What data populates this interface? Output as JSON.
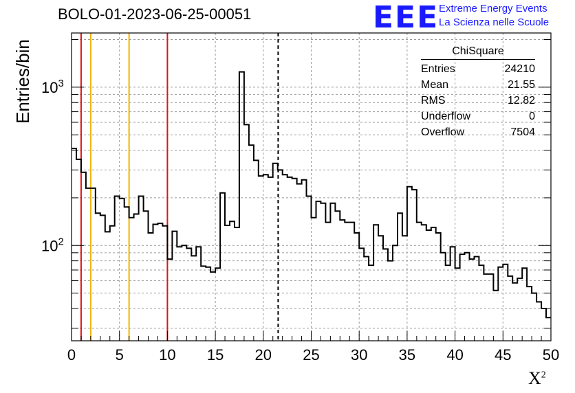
{
  "title": "BOLO-01-2023-06-25-00051",
  "logo": {
    "mark": "EEE",
    "line1": "Extreme Energy Events",
    "line2": "La Scienza nelle Scuole",
    "color": "#1a1aff"
  },
  "axes": {
    "ylabel": "Entries/bin",
    "xlabel": "X",
    "xlabel_sup": "2"
  },
  "stats": {
    "title": "ChiSquare",
    "rows": [
      {
        "label": "Entries",
        "value": "24210"
      },
      {
        "label": "Mean",
        "value": "21.55"
      },
      {
        "label": "RMS",
        "value": "12.82"
      },
      {
        "label": "Underflow",
        "value": "0"
      },
      {
        "label": "Overflow",
        "value": "7504"
      }
    ]
  },
  "chart_data": {
    "type": "histogram",
    "title": "BOLO-01-2023-06-25-00051",
    "xlabel": "X²",
    "ylabel": "Entries/bin",
    "xlim": [
      0,
      50
    ],
    "ylim": [
      25,
      2200
    ],
    "y_scale": "log",
    "grid": true,
    "bin_width": 0.5,
    "x_ticks": [
      0,
      5,
      10,
      15,
      20,
      25,
      30,
      35,
      40,
      45,
      50
    ],
    "y_tick_labels": [
      {
        "value": 100,
        "base": "10",
        "exp": "2"
      },
      {
        "value": 1000,
        "base": "10",
        "exp": "3"
      }
    ],
    "values": [
      410,
      350,
      290,
      230,
      230,
      160,
      155,
      122,
      133,
      205,
      198,
      175,
      150,
      158,
      205,
      165,
      120,
      136,
      138,
      133,
      82,
      123,
      98,
      100,
      96,
      86,
      98,
      74,
      73,
      68,
      72,
      215,
      134,
      142,
      130,
      1250,
      580,
      430,
      345,
      275,
      280,
      270,
      330,
      300,
      280,
      270,
      265,
      245,
      260,
      205,
      150,
      190,
      185,
      140,
      185,
      165,
      145,
      140,
      140,
      120,
      96,
      85,
      75,
      135,
      115,
      95,
      80,
      100,
      160,
      115,
      235,
      225,
      140,
      135,
      125,
      130,
      120,
      90,
      75,
      98,
      72,
      88,
      90,
      82,
      85,
      75,
      66,
      66,
      52,
      73,
      76,
      64,
      58,
      62,
      72,
      55,
      50,
      44,
      40,
      35
    ],
    "vertical_lines": [
      {
        "x": 1,
        "color": "#e01414",
        "style": "solid"
      },
      {
        "x": 2,
        "color": "#f0b400",
        "style": "solid"
      },
      {
        "x": 6,
        "color": "#f0b400",
        "style": "solid"
      },
      {
        "x": 10,
        "color": "#e01414",
        "style": "solid"
      },
      {
        "x": 21.55,
        "color": "#000000",
        "style": "dashed"
      }
    ]
  }
}
